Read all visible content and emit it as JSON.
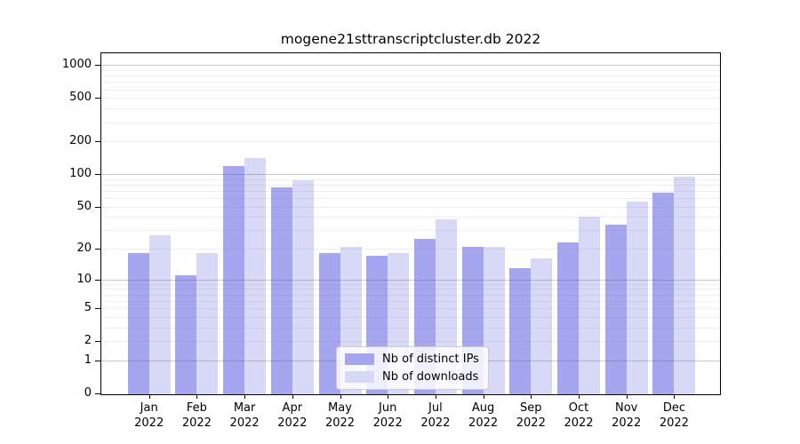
{
  "chart_data": {
    "type": "bar",
    "title": "mogene21sttranscriptcluster.db 2022",
    "categories": [
      "Jan",
      "Feb",
      "Mar",
      "Apr",
      "May",
      "Jun",
      "Jul",
      "Aug",
      "Sep",
      "Oct",
      "Nov",
      "Dec"
    ],
    "year": "2022",
    "series": [
      {
        "name": "Nb of distinct IPs",
        "color": "#a5a5f0",
        "values": [
          18,
          11,
          119,
          76,
          18,
          17,
          25,
          21,
          13,
          23,
          34,
          67
        ]
      },
      {
        "name": "Nb of downloads",
        "color": "#d8d8f7",
        "values": [
          27,
          18,
          140,
          88,
          21,
          18,
          38,
          21,
          16,
          40,
          56,
          94
        ]
      }
    ],
    "yscale": "log1p",
    "ytick_labels": [
      "0",
      "1",
      "2",
      "5",
      "10",
      "20",
      "50",
      "100",
      "200",
      "500",
      "1000"
    ],
    "ytick_values": [
      0,
      1,
      2,
      5,
      10,
      20,
      50,
      100,
      200,
      500,
      1000
    ],
    "ylim": [
      0,
      1300
    ],
    "grid": "both",
    "legend_position": "lower center",
    "colors": {
      "background": "#ffffff",
      "axis": "#000000",
      "major_grid": "#c9c9c9",
      "minor_grid": "#e9e9e9"
    }
  }
}
